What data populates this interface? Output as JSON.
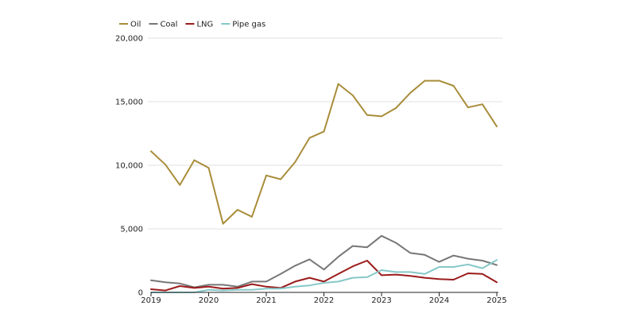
{
  "chart_data": {
    "type": "line",
    "title": "",
    "xlabel": "",
    "ylabel": "",
    "xlim": [
      2019,
      2025
    ],
    "ylim": [
      0,
      20000
    ],
    "yticks": [
      0,
      5000,
      10000,
      15000,
      20000
    ],
    "ytick_labels": [
      "0",
      "5,000",
      "10,000",
      "15,000",
      "20,000"
    ],
    "xticks": [
      2019,
      2020,
      2021,
      2022,
      2023,
      2024,
      2025
    ],
    "xtick_labels": [
      "2019",
      "2020",
      "2021",
      "2022",
      "2023",
      "2024",
      "2025"
    ],
    "grid": "horizontal",
    "legend_position": "top-left",
    "x": [
      2019.0,
      2019.25,
      2019.5,
      2019.75,
      2020.0,
      2020.25,
      2020.5,
      2020.75,
      2021.0,
      2021.25,
      2021.5,
      2021.75,
      2022.0,
      2022.25,
      2022.5,
      2022.75,
      2023.0,
      2023.25,
      2023.5,
      2023.75,
      2024.0,
      2024.25,
      2024.5,
      2024.75,
      2025.0
    ],
    "series": [
      {
        "name": "Oil",
        "color": "#a98d3a",
        "values": [
          11100,
          10050,
          8450,
          10400,
          9800,
          5400,
          6500,
          5950,
          9200,
          8900,
          10250,
          12150,
          12650,
          16400,
          15500,
          13950,
          13850,
          14500,
          15700,
          16650,
          16650,
          16250,
          14550,
          14800,
          13050
        ]
      },
      {
        "name": "Coal",
        "color": "#777777",
        "values": [
          950,
          800,
          700,
          400,
          600,
          600,
          450,
          850,
          850,
          1450,
          2100,
          2600,
          1800,
          2800,
          3650,
          3550,
          4450,
          3900,
          3100,
          2950,
          2400,
          2900,
          2650,
          2500,
          2150
        ]
      },
      {
        "name": "LNG",
        "color": "#9b1b1b",
        "values": [
          250,
          150,
          500,
          350,
          450,
          300,
          350,
          650,
          450,
          350,
          850,
          1150,
          850,
          1450,
          2050,
          2500,
          1350,
          1400,
          1300,
          1150,
          1050,
          1000,
          1500,
          1450,
          800
        ]
      },
      {
        "name": "Pipe gas",
        "color": "#86c8c8",
        "values": [
          0,
          0,
          0,
          0,
          200,
          150,
          200,
          200,
          300,
          300,
          450,
          550,
          750,
          850,
          1150,
          1200,
          1750,
          1600,
          1600,
          1450,
          2000,
          2000,
          2200,
          1900,
          2550
        ]
      }
    ]
  }
}
